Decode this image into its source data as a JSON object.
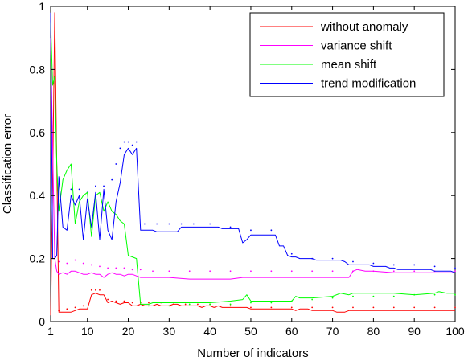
{
  "chart_data": {
    "type": "line",
    "xlabel": "Number of indicators",
    "ylabel": "Classification error",
    "xlim": [
      1,
      100
    ],
    "ylim": [
      0,
      1
    ],
    "xticks": [
      "1",
      "10",
      "20",
      "30",
      "40",
      "50",
      "60",
      "70",
      "80",
      "90",
      "100"
    ],
    "xtick_values": [
      1,
      10,
      20,
      30,
      40,
      50,
      60,
      70,
      80,
      90,
      100
    ],
    "yticks": [
      "0",
      "0.2",
      "0.4",
      "0.6",
      "0.8",
      "1"
    ],
    "ytick_values": [
      0,
      0.2,
      0.4,
      0.6,
      0.8,
      1
    ],
    "grid": false,
    "legend_position": "top-right",
    "series": [
      {
        "name": "without anomaly",
        "color": "#ff0000",
        "x": [
          1,
          1.5,
          2,
          2.5,
          3,
          4,
          5,
          6,
          7,
          8,
          9,
          10,
          11,
          12,
          13,
          14,
          15,
          16,
          17,
          18,
          19,
          20,
          21,
          22,
          23,
          24,
          25,
          26,
          27,
          28,
          29,
          30,
          31,
          32,
          33,
          34,
          35,
          36,
          37,
          38,
          39,
          40,
          41,
          42,
          43,
          44,
          45,
          46,
          47,
          48,
          49,
          50,
          51,
          52,
          53,
          54,
          55,
          56,
          57,
          58,
          59,
          60,
          61,
          62,
          63,
          64,
          65,
          66,
          67,
          68,
          69,
          70,
          71,
          72,
          73,
          74,
          75,
          76,
          77,
          78,
          79,
          80,
          81,
          82,
          83,
          84,
          85,
          86,
          87,
          88,
          89,
          90,
          91,
          92,
          93,
          94,
          95,
          96,
          97,
          98,
          99,
          100
        ],
        "y": [
          0.02,
          0.45,
          0.98,
          0.5,
          0.03,
          0.03,
          0.03,
          0.03,
          0.035,
          0.04,
          0.04,
          0.04,
          0.085,
          0.09,
          0.085,
          0.085,
          0.06,
          0.065,
          0.06,
          0.055,
          0.06,
          0.06,
          0.05,
          0.05,
          0.055,
          0.05,
          0.05,
          0.05,
          0.055,
          0.05,
          0.05,
          0.05,
          0.055,
          0.055,
          0.05,
          0.05,
          0.05,
          0.05,
          0.05,
          0.045,
          0.05,
          0.05,
          0.045,
          0.05,
          0.045,
          0.045,
          0.045,
          0.045,
          0.045,
          0.045,
          0.045,
          0.04,
          0.04,
          0.04,
          0.04,
          0.04,
          0.04,
          0.04,
          0.04,
          0.04,
          0.04,
          0.04,
          0.035,
          0.04,
          0.04,
          0.04,
          0.035,
          0.035,
          0.035,
          0.035,
          0.035,
          0.035,
          0.03,
          0.03,
          0.03,
          0.035,
          0.035,
          0.035,
          0.035,
          0.035,
          0.035,
          0.035,
          0.035,
          0.035,
          0.035,
          0.035,
          0.035,
          0.035,
          0.035,
          0.035,
          0.035,
          0.035,
          0.035,
          0.035,
          0.035,
          0.035,
          0.035,
          0.035,
          0.035,
          0.035,
          0.035,
          0.035
        ]
      },
      {
        "name": "variance shift",
        "color": "#ff00ff",
        "x": [
          1,
          1.5,
          2,
          2.5,
          3,
          4,
          5,
          6,
          7,
          8,
          9,
          10,
          11,
          12,
          13,
          14,
          15,
          16,
          17,
          18,
          19,
          20,
          21,
          22,
          23,
          24,
          25,
          26,
          27,
          28,
          29,
          30,
          35,
          40,
          45,
          48,
          49,
          50,
          55,
          60,
          65,
          70,
          72,
          74,
          75,
          76,
          78,
          80,
          85,
          90,
          95,
          100
        ],
        "y": [
          0.9,
          0.55,
          0.2,
          0.16,
          0.15,
          0.155,
          0.15,
          0.16,
          0.16,
          0.155,
          0.15,
          0.15,
          0.155,
          0.15,
          0.15,
          0.14,
          0.15,
          0.155,
          0.15,
          0.15,
          0.145,
          0.15,
          0.15,
          0.145,
          0.14,
          0.14,
          0.14,
          0.14,
          0.14,
          0.14,
          0.14,
          0.14,
          0.135,
          0.135,
          0.135,
          0.14,
          0.14,
          0.14,
          0.14,
          0.14,
          0.14,
          0.14,
          0.14,
          0.14,
          0.16,
          0.165,
          0.16,
          0.16,
          0.155,
          0.155,
          0.155,
          0.155
        ]
      },
      {
        "name": "mean shift",
        "color": "#00ff00",
        "x": [
          1,
          1.5,
          2,
          2.5,
          3,
          4,
          5,
          6,
          7,
          8,
          9,
          10,
          11,
          12,
          13,
          14,
          15,
          16,
          17,
          18,
          19,
          20,
          21,
          22,
          23,
          24,
          25,
          26,
          30,
          35,
          40,
          45,
          48,
          49,
          50,
          55,
          60,
          61,
          62,
          65,
          70,
          72,
          74,
          75,
          80,
          85,
          90,
          95,
          96,
          98,
          100
        ],
        "y": [
          0.95,
          0.75,
          0.78,
          0.5,
          0.35,
          0.45,
          0.48,
          0.5,
          0.31,
          0.38,
          0.4,
          0.41,
          0.27,
          0.4,
          0.41,
          0.35,
          0.38,
          0.35,
          0.34,
          0.32,
          0.31,
          0.21,
          0.205,
          0.2,
          0.055,
          0.055,
          0.055,
          0.06,
          0.06,
          0.06,
          0.06,
          0.065,
          0.07,
          0.085,
          0.065,
          0.065,
          0.065,
          0.08,
          0.075,
          0.075,
          0.08,
          0.09,
          0.085,
          0.09,
          0.09,
          0.09,
          0.085,
          0.09,
          0.095,
          0.09,
          0.09
        ]
      },
      {
        "name": "trend modification",
        "color": "#0000ff",
        "x": [
          1,
          1.5,
          2,
          2.5,
          3,
          4,
          5,
          6,
          7,
          8,
          9,
          10,
          11,
          12,
          13,
          14,
          15,
          16,
          17,
          18,
          19,
          20,
          21,
          22,
          23,
          24,
          25,
          26,
          27,
          28,
          29,
          30,
          31,
          32,
          33,
          34,
          35,
          36,
          37,
          38,
          39,
          40,
          41,
          42,
          43,
          44,
          45,
          46,
          47,
          48,
          49,
          50,
          51,
          52,
          53,
          54,
          55,
          56,
          57,
          58,
          59,
          60,
          61,
          62,
          63,
          64,
          65,
          66,
          67,
          68,
          69,
          70,
          71,
          72,
          73,
          74,
          75,
          76,
          77,
          78,
          79,
          80,
          81,
          82,
          83,
          84,
          85,
          86,
          87,
          88,
          89,
          90,
          91,
          92,
          93,
          94,
          95,
          96,
          97,
          98,
          99,
          100
        ],
        "y": [
          0.98,
          0.2,
          0.2,
          0.21,
          0.46,
          0.3,
          0.29,
          0.4,
          0.37,
          0.4,
          0.26,
          0.39,
          0.3,
          0.41,
          0.26,
          0.42,
          0.29,
          0.26,
          0.38,
          0.44,
          0.53,
          0.55,
          0.53,
          0.55,
          0.29,
          0.29,
          0.29,
          0.29,
          0.285,
          0.285,
          0.285,
          0.285,
          0.285,
          0.285,
          0.3,
          0.3,
          0.3,
          0.3,
          0.3,
          0.3,
          0.3,
          0.3,
          0.3,
          0.3,
          0.295,
          0.295,
          0.295,
          0.295,
          0.295,
          0.25,
          0.26,
          0.275,
          0.275,
          0.275,
          0.275,
          0.275,
          0.275,
          0.275,
          0.24,
          0.24,
          0.21,
          0.205,
          0.205,
          0.2,
          0.2,
          0.2,
          0.2,
          0.195,
          0.195,
          0.195,
          0.195,
          0.195,
          0.195,
          0.195,
          0.19,
          0.18,
          0.18,
          0.18,
          0.18,
          0.18,
          0.18,
          0.175,
          0.175,
          0.175,
          0.175,
          0.17,
          0.17,
          0.165,
          0.165,
          0.165,
          0.165,
          0.165,
          0.165,
          0.165,
          0.165,
          0.165,
          0.16,
          0.16,
          0.16,
          0.16,
          0.16,
          0.155
        ]
      }
    ],
    "dotted_bands": [
      {
        "series": "without anomaly",
        "color": "#ff0000",
        "x": [
          3,
          5,
          7,
          9,
          11,
          12,
          13,
          15,
          17,
          19,
          21,
          23,
          25,
          28,
          31,
          34,
          37,
          40,
          45,
          50,
          55,
          60,
          65,
          70,
          75,
          80,
          85,
          90,
          95,
          100
        ],
        "y": [
          0.035,
          0.04,
          0.045,
          0.05,
          0.1,
          0.1,
          0.1,
          0.07,
          0.065,
          0.065,
          0.06,
          0.06,
          0.06,
          0.06,
          0.06,
          0.055,
          0.055,
          0.055,
          0.05,
          0.045,
          0.045,
          0.045,
          0.045,
          0.045,
          0.045,
          0.045,
          0.045,
          0.045,
          0.045,
          0.045
        ]
      },
      {
        "series": "variance shift",
        "color": "#ff00ff",
        "x": [
          3,
          5,
          7,
          9,
          11,
          13,
          15,
          17,
          19,
          21,
          23,
          26,
          30,
          35,
          40,
          45,
          50,
          55,
          60,
          65,
          70,
          75,
          80,
          85,
          90,
          95,
          100
        ],
        "y": [
          0.19,
          0.185,
          0.195,
          0.185,
          0.18,
          0.175,
          0.17,
          0.17,
          0.17,
          0.165,
          0.165,
          0.16,
          0.16,
          0.16,
          0.16,
          0.16,
          0.16,
          0.16,
          0.16,
          0.16,
          0.16,
          0.16,
          0.16,
          0.16,
          0.16,
          0.16,
          0.16
        ]
      },
      {
        "series": "mean shift",
        "color": "#00ff00",
        "x": [
          25,
          30,
          35,
          40,
          45,
          50,
          55,
          60,
          65,
          70,
          75,
          80,
          85,
          90,
          95,
          100
        ],
        "y": [
          0.05,
          0.05,
          0.055,
          0.055,
          0.055,
          0.06,
          0.06,
          0.065,
          0.07,
          0.075,
          0.08,
          0.08,
          0.08,
          0.085,
          0.085,
          0.085
        ]
      },
      {
        "series": "trend modification",
        "color": "#0000ff",
        "x": [
          6,
          8,
          10,
          12,
          14,
          16,
          17,
          18,
          19,
          20,
          21,
          22,
          24,
          27,
          30,
          33,
          36,
          40,
          45,
          50,
          55,
          60,
          65,
          70,
          75,
          80,
          85,
          90,
          95,
          100
        ],
        "y": [
          0.42,
          0.42,
          0.41,
          0.43,
          0.43,
          0.45,
          0.5,
          0.55,
          0.57,
          0.57,
          0.56,
          0.57,
          0.31,
          0.31,
          0.31,
          0.31,
          0.31,
          0.31,
          0.3,
          0.29,
          0.29,
          0.215,
          0.2,
          0.2,
          0.19,
          0.185,
          0.18,
          0.18,
          0.175,
          0.17
        ]
      }
    ]
  }
}
